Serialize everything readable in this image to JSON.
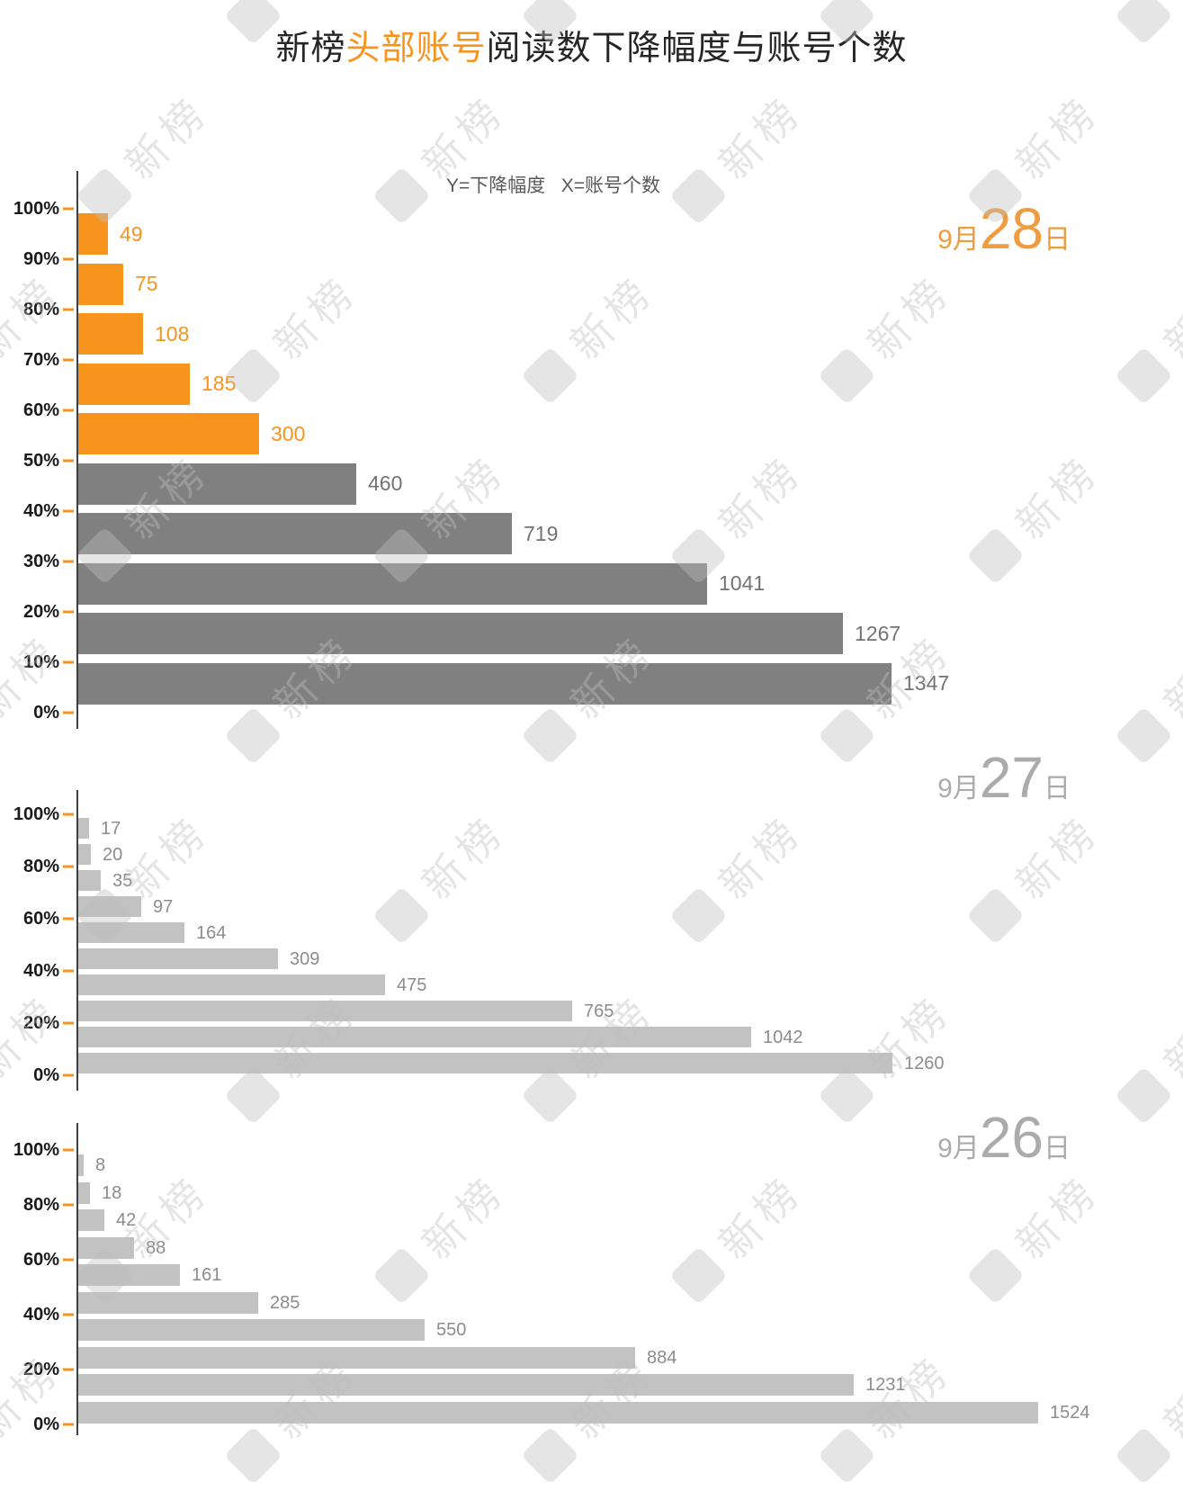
{
  "page": {
    "title": {
      "prefix": "新榜",
      "highlight": "头部账号",
      "suffix": "阅读数下降幅度与账号个数"
    },
    "subtitle": "Y=下降幅度   X=账号个数"
  },
  "watermark": {
    "brand": "新榜",
    "logo_letter": "N"
  },
  "colors": {
    "accent_orange": "#F7941E",
    "bar_dark_gray": "#808080",
    "bar_light_gray": "#C2C2C2",
    "title_black": "#262626",
    "subtitle_gray": "#595959",
    "tick_dash_orange": "#F7941E",
    "axis_line_gray": "#3F3F3F"
  },
  "chart_data": [
    {
      "type": "bar",
      "orientation": "horizontal",
      "date_label": {
        "month": "9月",
        "day": "28",
        "suffix": "日"
      },
      "date_color": "#EE9C3F",
      "y_axis": {
        "label": "下降幅度",
        "tick_labels": [
          "100%",
          "90%",
          "80%",
          "70%",
          "60%",
          "50%",
          "40%",
          "30%",
          "20%",
          "10%",
          "0%"
        ]
      },
      "x_axis": {
        "label": "账号个数"
      },
      "values": [
        49,
        75,
        108,
        185,
        300,
        460,
        719,
        1041,
        1267,
        1347
      ],
      "highlight_first_n": 5,
      "bar_color_highlight": "#F7941E",
      "bar_color_normal": "#808080",
      "label_color_highlight": "#F7941E",
      "label_color_normal": "#737373"
    },
    {
      "type": "bar",
      "orientation": "horizontal",
      "date_label": {
        "month": "9月",
        "day": "27",
        "suffix": "日"
      },
      "date_color": "#ABABAB",
      "y_axis": {
        "label": "下降幅度",
        "tick_labels": [
          "100%",
          "80%",
          "60%",
          "40%",
          "20%",
          "0%"
        ]
      },
      "x_axis": {
        "label": "账号个数"
      },
      "values": [
        17,
        20,
        35,
        97,
        164,
        309,
        475,
        765,
        1042,
        1260
      ],
      "highlight_first_n": 0,
      "bar_color_highlight": "#F7941E",
      "bar_color_normal": "#C2C2C2",
      "label_color_highlight": "#F7941E",
      "label_color_normal": "#8C8C8C"
    },
    {
      "type": "bar",
      "orientation": "horizontal",
      "date_label": {
        "month": "9月",
        "day": "26",
        "suffix": "日"
      },
      "date_color": "#ABABAB",
      "y_axis": {
        "label": "下降幅度",
        "tick_labels": [
          "100%",
          "80%",
          "60%",
          "40%",
          "20%",
          "0%"
        ]
      },
      "x_axis": {
        "label": "账号个数"
      },
      "values": [
        8,
        18,
        42,
        88,
        161,
        285,
        550,
        884,
        1231,
        1524
      ],
      "highlight_first_n": 0,
      "bar_color_highlight": "#F7941E",
      "bar_color_normal": "#C2C2C2",
      "label_color_highlight": "#F7941E",
      "label_color_normal": "#8C8C8C"
    }
  ]
}
